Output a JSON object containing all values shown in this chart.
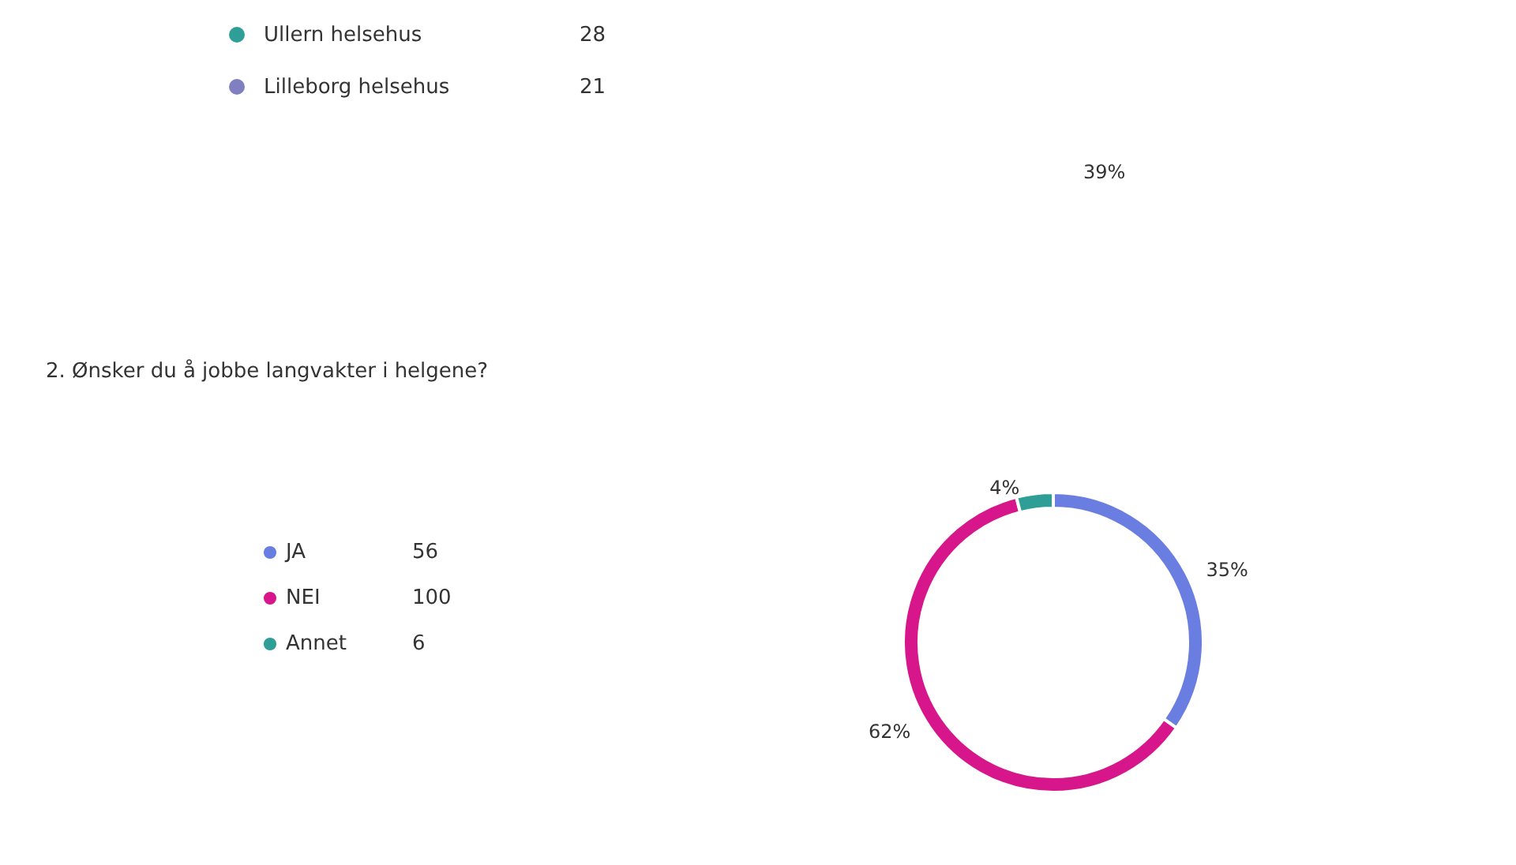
{
  "chart_data": [
    {
      "type": "other",
      "categories": [
        "Ullern helsehus",
        "Lilleborg helsehus"
      ],
      "colors": [
        "#2f9e96",
        "#8080c0"
      ],
      "annotations": [
        "28",
        "21",
        "39%"
      ]
    },
    {
      "type": "donut",
      "title": "2. Ønsker du å jobbe langvakter i helgene?",
      "categories": [
        "JA",
        "NEI",
        "Annet"
      ],
      "values": [
        35,
        62,
        4
      ],
      "colors": [
        "#6a7de0",
        "#d6168a",
        "#2f9e96"
      ],
      "value_labels": [
        "35%",
        "62%",
        "4%"
      ],
      "annotations": [
        "56",
        "100",
        "6"
      ],
      "legend": "left"
    }
  ]
}
